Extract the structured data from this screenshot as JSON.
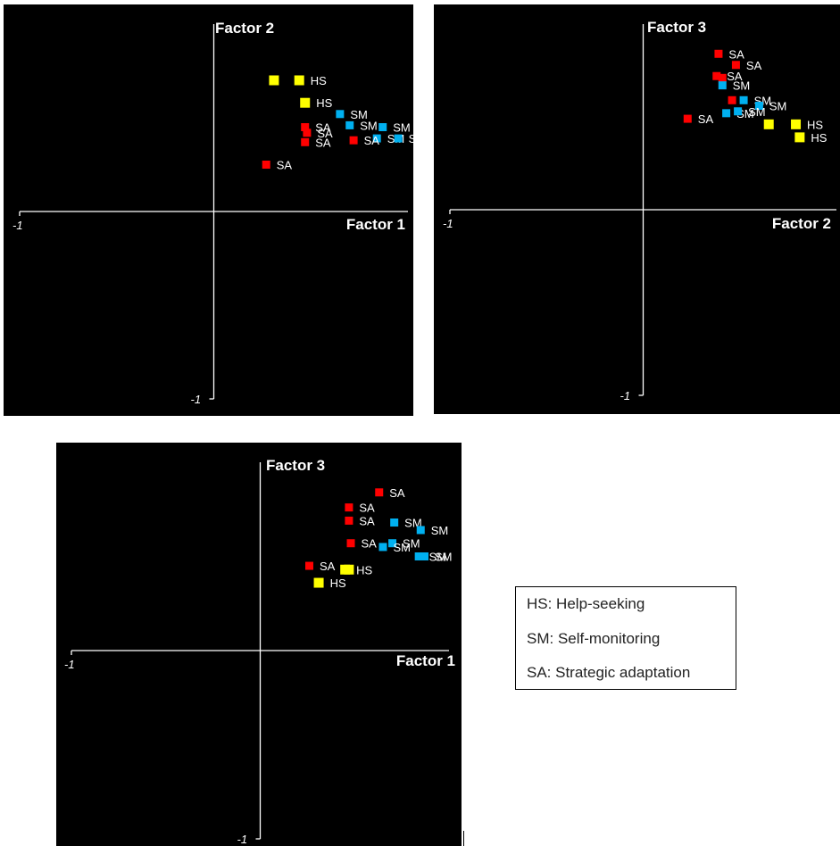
{
  "colors": {
    "HS": "#ffff00",
    "SM": "#00b0f0",
    "SA": "#ff0000",
    "background": "#000000",
    "axis": "#ffffff"
  },
  "legend": [
    {
      "key": "HS",
      "text": "HS: Help-seeking"
    },
    {
      "key": "SM",
      "text": "SM: Self-monitoring"
    },
    {
      "key": "SA",
      "text": "SA: Strategic adaptation"
    }
  ],
  "chart_data": [
    {
      "type": "scatter",
      "xlabel": "Factor 1",
      "ylabel": "Factor 2",
      "x_tick_label": "-1",
      "y_tick_label": "-1",
      "xlim": [
        -1,
        1
      ],
      "ylim": [
        -1,
        1
      ],
      "grid": false,
      "points": [
        {
          "group": "HS",
          "x": 0.31,
          "y": 0.7,
          "label": ""
        },
        {
          "group": "HS",
          "x": 0.44,
          "y": 0.7,
          "label": "HS"
        },
        {
          "group": "HS",
          "x": 0.47,
          "y": 0.58,
          "label": "HS"
        },
        {
          "group": "SM",
          "x": 0.65,
          "y": 0.52,
          "label": "SM"
        },
        {
          "group": "SM",
          "x": 0.7,
          "y": 0.46,
          "label": "SM"
        },
        {
          "group": "SM",
          "x": 0.87,
          "y": 0.45,
          "label": "SM"
        },
        {
          "group": "SM",
          "x": 0.84,
          "y": 0.39,
          "label": "SM"
        },
        {
          "group": "SM",
          "x": 0.95,
          "y": 0.39,
          "label": "SM"
        },
        {
          "group": "SA",
          "x": 0.47,
          "y": 0.45,
          "label": "SA"
        },
        {
          "group": "SA",
          "x": 0.48,
          "y": 0.42,
          "label": "SA"
        },
        {
          "group": "SA",
          "x": 0.47,
          "y": 0.37,
          "label": "SA"
        },
        {
          "group": "SA",
          "x": 0.72,
          "y": 0.38,
          "label": "SA"
        },
        {
          "group": "SA",
          "x": 0.27,
          "y": 0.25,
          "label": "SA"
        }
      ]
    },
    {
      "type": "scatter",
      "xlabel": "Factor 2",
      "ylabel": "Factor 3",
      "x_tick_label": "-1",
      "y_tick_label": "-1",
      "xlim": [
        -1,
        1
      ],
      "ylim": [
        -1,
        1
      ],
      "grid": false,
      "points": [
        {
          "group": "SA",
          "x": 0.39,
          "y": 0.84,
          "label": "SA"
        },
        {
          "group": "SA",
          "x": 0.48,
          "y": 0.78,
          "label": "SA"
        },
        {
          "group": "SA",
          "x": 0.38,
          "y": 0.72,
          "label": "SA"
        },
        {
          "group": "SA",
          "x": 0.41,
          "y": 0.71,
          "label": ""
        },
        {
          "group": "SA",
          "x": 0.46,
          "y": 0.59,
          "label": ""
        },
        {
          "group": "SA",
          "x": 0.23,
          "y": 0.49,
          "label": "SA"
        },
        {
          "group": "SM",
          "x": 0.41,
          "y": 0.67,
          "label": "SM"
        },
        {
          "group": "SM",
          "x": 0.52,
          "y": 0.59,
          "label": "SM"
        },
        {
          "group": "SM",
          "x": 0.6,
          "y": 0.56,
          "label": "SM"
        },
        {
          "group": "SM",
          "x": 0.43,
          "y": 0.52,
          "label": "SM"
        },
        {
          "group": "SM",
          "x": 0.49,
          "y": 0.53,
          "label": "SM"
        },
        {
          "group": "HS",
          "x": 0.65,
          "y": 0.46,
          "label": ""
        },
        {
          "group": "HS",
          "x": 0.79,
          "y": 0.46,
          "label": "HS"
        },
        {
          "group": "HS",
          "x": 0.81,
          "y": 0.39,
          "label": "HS"
        }
      ]
    },
    {
      "type": "scatter",
      "xlabel": "Factor 1",
      "ylabel": "Factor 3",
      "x_tick_label": "-1",
      "y_tick_label": "-1",
      "xlim": [
        -1,
        1
      ],
      "ylim": [
        -1,
        1
      ],
      "grid": false,
      "points": [
        {
          "group": "SA",
          "x": 0.63,
          "y": 0.84,
          "label": "SA"
        },
        {
          "group": "SA",
          "x": 0.47,
          "y": 0.76,
          "label": "SA"
        },
        {
          "group": "SA",
          "x": 0.47,
          "y": 0.69,
          "label": "SA"
        },
        {
          "group": "SA",
          "x": 0.48,
          "y": 0.57,
          "label": "SA"
        },
        {
          "group": "SA",
          "x": 0.26,
          "y": 0.45,
          "label": "SA"
        },
        {
          "group": "SM",
          "x": 0.71,
          "y": 0.68,
          "label": "SM"
        },
        {
          "group": "SM",
          "x": 0.85,
          "y": 0.64,
          "label": "SM"
        },
        {
          "group": "SM",
          "x": 0.7,
          "y": 0.57,
          "label": "SM"
        },
        {
          "group": "SM",
          "x": 0.65,
          "y": 0.55,
          "label": "SM"
        },
        {
          "group": "SM",
          "x": 0.84,
          "y": 0.5,
          "label": "SM"
        },
        {
          "group": "SM",
          "x": 0.87,
          "y": 0.5,
          "label": "SM"
        },
        {
          "group": "HS",
          "x": 0.45,
          "y": 0.43,
          "label": "HS"
        },
        {
          "group": "HS",
          "x": 0.47,
          "y": 0.43,
          "label": ""
        },
        {
          "group": "HS",
          "x": 0.31,
          "y": 0.36,
          "label": "HS"
        }
      ]
    }
  ]
}
